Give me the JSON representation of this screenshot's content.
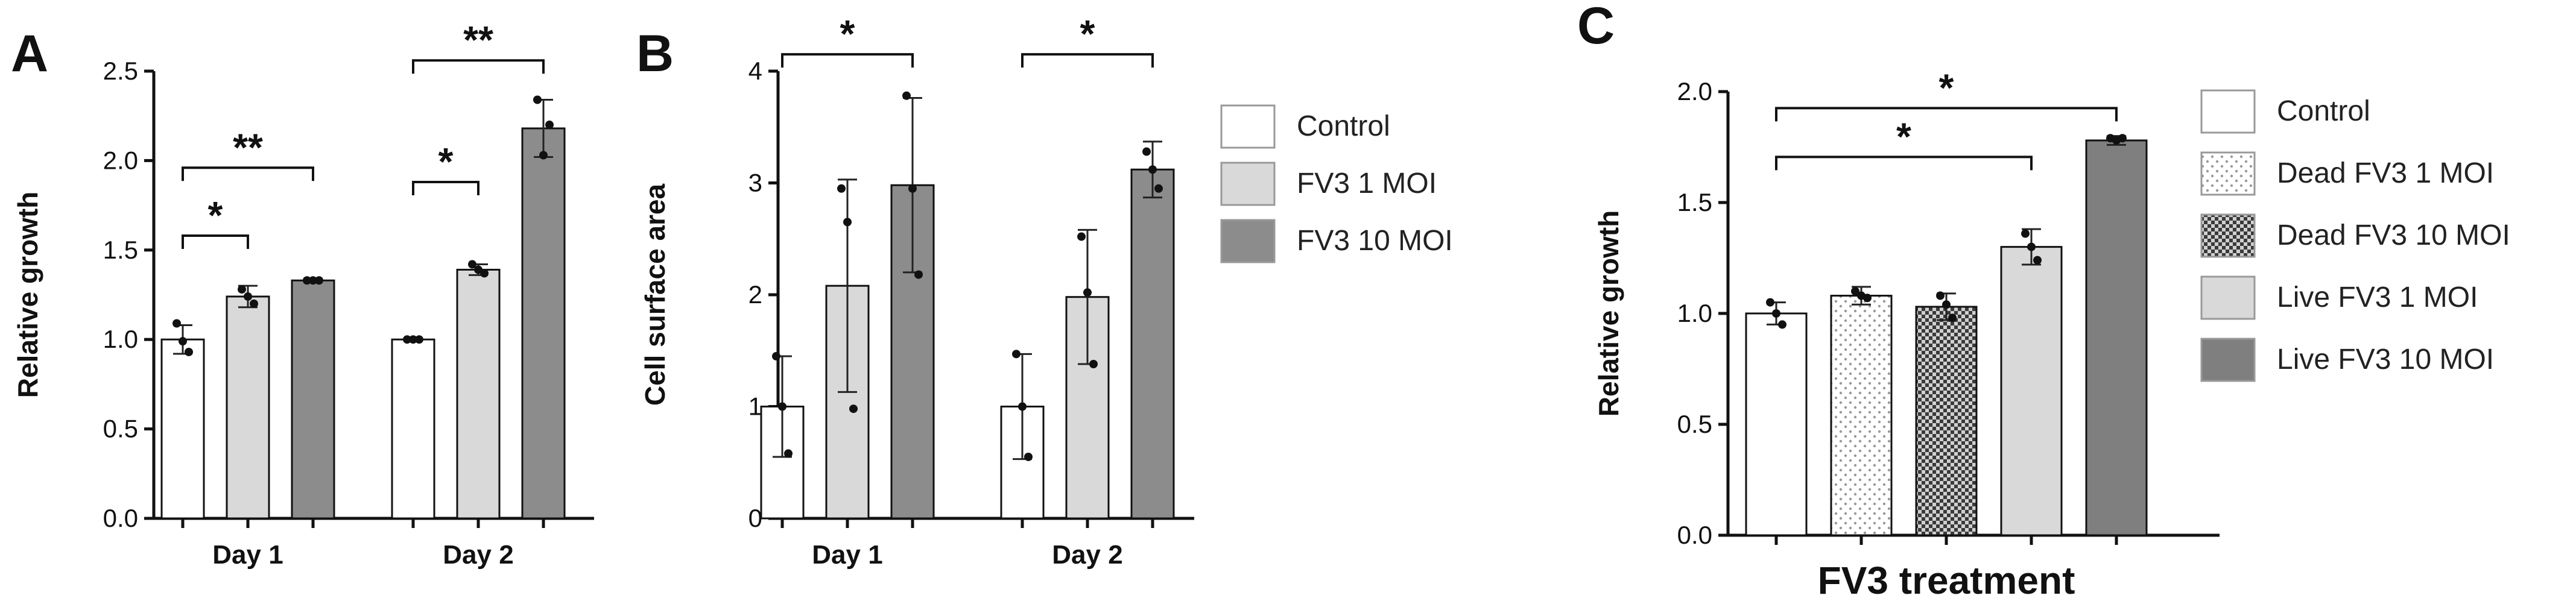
{
  "chart_data": [
    {
      "panel": "A",
      "type": "bar",
      "ylabel": "Relative growth",
      "ylim": [
        0,
        2.5
      ],
      "yticks": [
        "0.0",
        "0.5",
        "1.0",
        "1.5",
        "2.0",
        "2.5"
      ],
      "categories": [
        "Day 1",
        "Day 2"
      ],
      "series": [
        {
          "name": "Control",
          "color": "#ffffff",
          "values": [
            1.0,
            1.0
          ],
          "errors": [
            0.08,
            0.0
          ],
          "points": [
            [
              1.09,
              0.93,
              0.99
            ],
            [
              1.0,
              1.0,
              1.0
            ]
          ]
        },
        {
          "name": "FV3 1 MOI",
          "color": "#d9d9d9",
          "values": [
            1.24,
            1.39
          ],
          "errors": [
            0.06,
            0.03
          ],
          "points": [
            [
              1.28,
              1.2,
              1.24
            ],
            [
              1.42,
              1.37,
              1.39
            ]
          ]
        },
        {
          "name": "FV3 10 MOI",
          "color": "#8c8c8c",
          "values": [
            1.33,
            2.18
          ],
          "errors": [
            0.01,
            0.16
          ],
          "points": [
            [
              1.33,
              1.33,
              1.33
            ],
            [
              2.34,
              2.2,
              2.03
            ]
          ]
        }
      ],
      "significance": [
        {
          "group": 0,
          "from": 0,
          "to": 1,
          "label": "*",
          "y": 1.58
        },
        {
          "group": 0,
          "from": 0,
          "to": 2,
          "label": "**",
          "y": 1.96
        },
        {
          "group": 1,
          "from": 0,
          "to": 1,
          "label": "*",
          "y": 1.88
        },
        {
          "group": 1,
          "from": 0,
          "to": 2,
          "label": "**",
          "y": 2.56
        }
      ]
    },
    {
      "panel": "B",
      "type": "bar",
      "ylabel": "Cell surface area",
      "ylim": [
        0,
        4
      ],
      "yticks": [
        "0",
        "1",
        "2",
        "3",
        "4"
      ],
      "categories": [
        "Day 1",
        "Day 2"
      ],
      "series": [
        {
          "name": "Control",
          "color": "#ffffff",
          "values": [
            1.0,
            1.0
          ],
          "errors": [
            0.45,
            0.47
          ],
          "points": [
            [
              1.45,
              0.58,
              1.0
            ],
            [
              1.47,
              0.55,
              1.0
            ]
          ]
        },
        {
          "name": "FV3 1 MOI",
          "color": "#d9d9d9",
          "values": [
            2.08,
            1.98
          ],
          "errors": [
            0.95,
            0.6
          ],
          "points": [
            [
              2.95,
              0.98,
              2.65
            ],
            [
              2.52,
              1.38,
              2.02
            ]
          ]
        },
        {
          "name": "FV3 10 MOI",
          "color": "#8c8c8c",
          "values": [
            2.98,
            3.12
          ],
          "errors": [
            0.78,
            0.25
          ],
          "points": [
            [
              3.78,
              2.18,
              2.95
            ],
            [
              3.28,
              2.95,
              3.12
            ]
          ]
        }
      ],
      "significance": [
        {
          "group": 0,
          "from": 0,
          "to": 2,
          "label": "*",
          "y": 4.15
        },
        {
          "group": 1,
          "from": 0,
          "to": 2,
          "label": "*",
          "y": 4.15
        }
      ],
      "legend": {
        "placement": "right",
        "entries": [
          "Control",
          "FV3 1 MOI",
          "FV3 10 MOI"
        ]
      }
    },
    {
      "panel": "C",
      "type": "bar",
      "ylabel": "Relative growth",
      "xlabel": "FV3 treatment",
      "ylim": [
        0,
        2.0
      ],
      "yticks": [
        "0.0",
        "0.5",
        "1.0",
        "1.5",
        "2.0"
      ],
      "categories": [
        "Control",
        "Dead FV3 1 MOI",
        "Dead FV3 10 MOI",
        "Live FV3 1 MOI",
        "Live FV3 10 MOI"
      ],
      "bar_fills": [
        "#ffffff",
        "dots",
        "checker",
        "#d9d9d9",
        "#7f7f7f"
      ],
      "values": [
        1.0,
        1.08,
        1.03,
        1.3,
        1.78
      ],
      "errors": [
        0.05,
        0.04,
        0.06,
        0.08,
        0.02
      ],
      "points": [
        [
          1.05,
          0.95,
          1.0
        ],
        [
          1.1,
          1.07,
          1.08
        ],
        [
          1.08,
          0.98,
          1.04
        ],
        [
          1.36,
          1.24,
          1.3
        ],
        [
          1.79,
          1.79,
          1.78
        ]
      ],
      "significance": [
        {
          "from": 0,
          "to": 3,
          "label": "*",
          "y": 1.76
        },
        {
          "from": 0,
          "to": 4,
          "label": "*",
          "y": 1.98
        }
      ],
      "legend": {
        "placement": "right",
        "entries": [
          "Control",
          "Dead FV3 1 MOI",
          "Dead FV3 10 MOI",
          "Live FV3 1 MOI",
          "Live FV3 10 MOI"
        ]
      }
    }
  ]
}
